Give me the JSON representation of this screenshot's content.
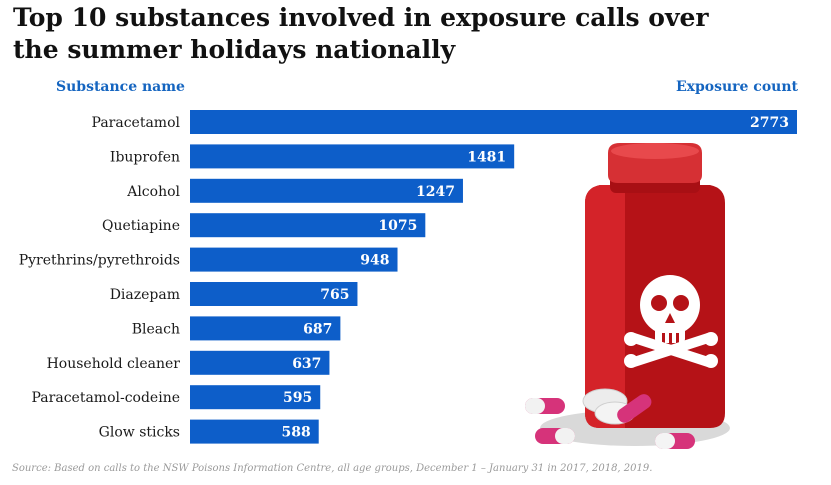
{
  "title": "Top 10 substances involved in exposure calls over the summer holidays nationally",
  "headers": {
    "left": "Substance name",
    "right": "Exposure count"
  },
  "chart_data": {
    "type": "bar",
    "orientation": "horizontal",
    "title": "Top 10 substances involved in exposure calls over the summer holidays nationally",
    "xlabel": "Exposure count",
    "ylabel": "Substance name",
    "categories": [
      "Paracetamol",
      "Ibuprofen",
      "Alcohol",
      "Quetiapine",
      "Pyrethrins/pyrethroids",
      "Diazepam",
      "Bleach",
      "Household cleaner",
      "Paracetamol-codeine",
      "Glow sticks"
    ],
    "values": [
      2773,
      1481,
      1247,
      1075,
      948,
      765,
      687,
      637,
      595,
      588
    ],
    "xlim": [
      0,
      2773
    ],
    "grid": false,
    "bar_color": "#0d5ec9",
    "label_color": "#ffffff"
  },
  "source": "Source: Based on calls to the NSW Poisons Information Centre, all age groups, December 1 – January 31 in 2017, 2018, 2019.",
  "illustration": {
    "icon": "poison-bottle-with-pills-icon",
    "bottle_color": "#c8161d",
    "pill_color": "#d6337a"
  }
}
